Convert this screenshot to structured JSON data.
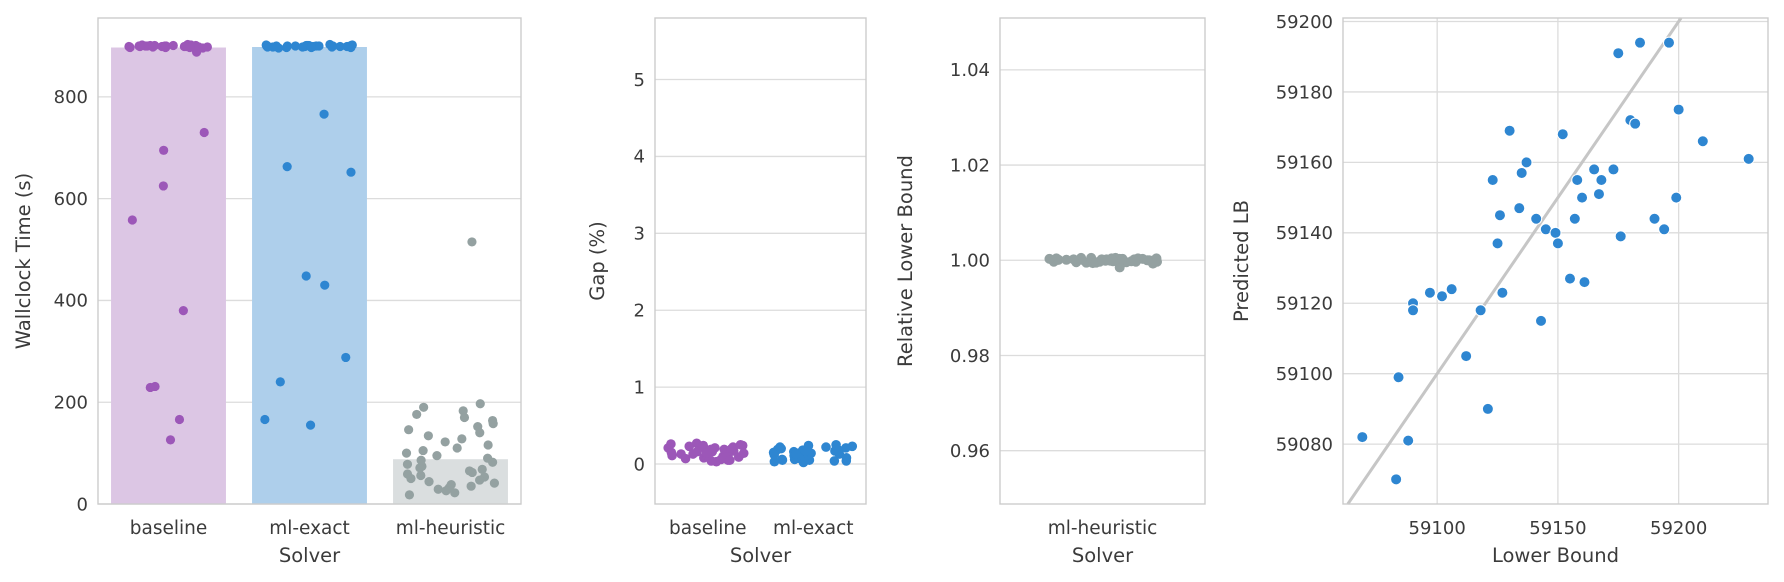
{
  "figure": {
    "background": "#ffffff",
    "grid_color": "#dcdcdc",
    "frame_color": "#cccccc",
    "text_color": "#3b3b3b"
  },
  "chart_data": [
    {
      "type": "bar",
      "id": "wallclock_time",
      "xlabel": "Solver",
      "ylabel": "Wallclock Time (s)",
      "categories": [
        "baseline",
        "ml-exact",
        "ml-heuristic"
      ],
      "bar_values": [
        897,
        898,
        88
      ],
      "bar_colors": [
        "#dcc6e4",
        "#aecfeb",
        "#dadedf"
      ],
      "point_colors": [
        "#9c57b8",
        "#2e86d1",
        "#94a1a1"
      ],
      "yticks": [
        0,
        200,
        400,
        600,
        800
      ],
      "ytick_labels": [
        "0",
        "200",
        "400",
        "600",
        "800"
      ],
      "ylim": [
        0,
        955
      ],
      "grid": true,
      "strip_points": {
        "baseline": [
          903,
          902,
          902,
          901,
          901,
          901,
          900,
          900,
          900,
          900,
          900,
          900,
          899,
          899,
          899,
          899,
          899,
          898,
          898,
          898,
          898,
          897,
          897,
          897,
          896,
          900,
          901,
          899,
          888,
          730,
          695,
          625,
          558,
          380,
          231,
          229,
          166,
          126
        ],
        "ml-exact": [
          903,
          902,
          902,
          901,
          901,
          901,
          900,
          900,
          900,
          900,
          900,
          900,
          900,
          899,
          899,
          899,
          899,
          899,
          898,
          898,
          898,
          898,
          897,
          897,
          897,
          896,
          900,
          901,
          899,
          898,
          766,
          663,
          652,
          448,
          430,
          288,
          240,
          166,
          155
        ],
        "ml-heuristic": [
          515,
          197,
          190,
          183,
          176,
          170,
          164,
          158,
          152,
          146,
          140,
          134,
          128,
          122,
          116,
          110,
          105,
          100,
          95,
          90,
          86,
          82,
          78,
          74,
          71,
          68,
          65,
          62,
          59,
          56,
          53,
          50,
          47,
          44,
          41,
          38,
          35,
          32,
          29,
          26,
          22,
          18
        ]
      }
    },
    {
      "type": "strip",
      "id": "gap_percent",
      "xlabel": "Solver",
      "ylabel": "Gap (%)",
      "categories": [
        "baseline",
        "ml-exact"
      ],
      "point_colors": [
        "#9c57b8",
        "#2e86d1"
      ],
      "yticks": [
        0,
        1,
        2,
        3,
        4,
        5
      ],
      "ytick_labels": [
        "0",
        "1",
        "2",
        "3",
        "4",
        "5"
      ],
      "ylim": [
        -0.52,
        5.8
      ],
      "grid": true,
      "strip_points": {
        "baseline": [
          0.05,
          0.21,
          0.13,
          0.24,
          0.08,
          0.17,
          0.11,
          0.26,
          0.03,
          0.15,
          0.19,
          0.07,
          0.22,
          0.12,
          0.25,
          0.09,
          0.16,
          0.04,
          0.2,
          0.14,
          0.27,
          0.06,
          0.18,
          0.1,
          0.23,
          0.13,
          0.08,
          0.21,
          0.16,
          0.05,
          0.24,
          0.11,
          0.19,
          0.14
        ],
        "ml-exact": [
          0.04,
          0.18,
          0.1,
          0.22,
          0.06,
          0.15,
          0.09,
          0.24,
          0.02,
          0.13,
          0.17,
          0.05,
          0.2,
          0.11,
          0.23,
          0.07,
          0.14,
          0.03,
          0.19,
          0.12,
          0.25,
          0.05,
          0.16,
          0.08,
          0.21,
          0.12,
          0.06,
          0.18,
          0.14,
          0.04,
          0.22,
          0.1,
          0.17,
          0.13
        ]
      }
    },
    {
      "type": "strip",
      "id": "relative_lower_bound",
      "xlabel": "Solver",
      "ylabel": "Relative Lower Bound",
      "categories": [
        "ml-heuristic"
      ],
      "point_colors": [
        "#94a1a1"
      ],
      "yticks": [
        0.96,
        0.98,
        1.0,
        1.02,
        1.04
      ],
      "ytick_labels": [
        "0.96",
        "0.98",
        "1.00",
        "1.02",
        "1.04"
      ],
      "ylim": [
        0.9488,
        1.0509
      ],
      "grid": true,
      "strip_points": {
        "ml-heuristic": [
          1.0002,
          0.9997,
          1.0004,
          0.9999,
          1.0001,
          0.9995,
          1.0003,
          1.0,
          0.9998,
          1.0005,
          0.9996,
          1.0002,
          0.9999,
          1.0004,
          0.9997,
          1.0001,
          0.9994,
          1.0003,
          0.9998,
          1.0,
          1.0005,
          0.9996,
          1.0002,
          0.9999,
          0.9985,
          1.0001,
          1.0004,
          0.9997,
          1.0,
          1.0003,
          0.9995,
          1.0002,
          0.9998,
          1.0005,
          0.9996,
          1.0001,
          0.9999,
          1.0004,
          0.9993,
          1.0,
          1.0002,
          0.9997,
          1.0003,
          0.9998,
          1.0001
        ]
      }
    },
    {
      "type": "scatter",
      "id": "predicted_vs_lower_bound",
      "xlabel": "Lower Bound",
      "ylabel": "Predicted LB",
      "point_color": "#2e86d1",
      "line_color": "#c6c6c6",
      "identity_line": true,
      "xticks": [
        59100,
        59150,
        59200
      ],
      "xtick_labels": [
        "59100",
        "59150",
        "59200"
      ],
      "yticks": [
        59080,
        59100,
        59120,
        59140,
        59160,
        59180,
        59200
      ],
      "ytick_labels": [
        "59080",
        "59100",
        "59120",
        "59140",
        "59160",
        "59180",
        "59200"
      ],
      "xlim": [
        59061,
        59237
      ],
      "ylim": [
        59063,
        59201
      ],
      "grid": true,
      "x": [
        59069,
        59083,
        59088,
        59084,
        59090,
        59090,
        59097,
        59102,
        59106,
        59112,
        59118,
        59121,
        59127,
        59143,
        59123,
        59125,
        59126,
        59130,
        59134,
        59135,
        59137,
        59141,
        59145,
        59149,
        59150,
        59152,
        59155,
        59157,
        59158,
        59160,
        59161,
        59165,
        59167,
        59168,
        59173,
        59175,
        59176,
        59180,
        59182,
        59184,
        59190,
        59194,
        59196,
        59199,
        59200,
        59210,
        59229
      ],
      "y": [
        59082,
        59070,
        59081,
        59099,
        59120,
        59118,
        59123,
        59122,
        59124,
        59105,
        59118,
        59090,
        59123,
        59115,
        59155,
        59137,
        59145,
        59169,
        59147,
        59157,
        59160,
        59144,
        59141,
        59140,
        59137,
        59168,
        59127,
        59144,
        59155,
        59150,
        59126,
        59158,
        59151,
        59155,
        59158,
        59191,
        59139,
        59172,
        59171,
        59194,
        59144,
        59141,
        59194,
        59150,
        59175,
        59166,
        59161
      ]
    }
  ]
}
